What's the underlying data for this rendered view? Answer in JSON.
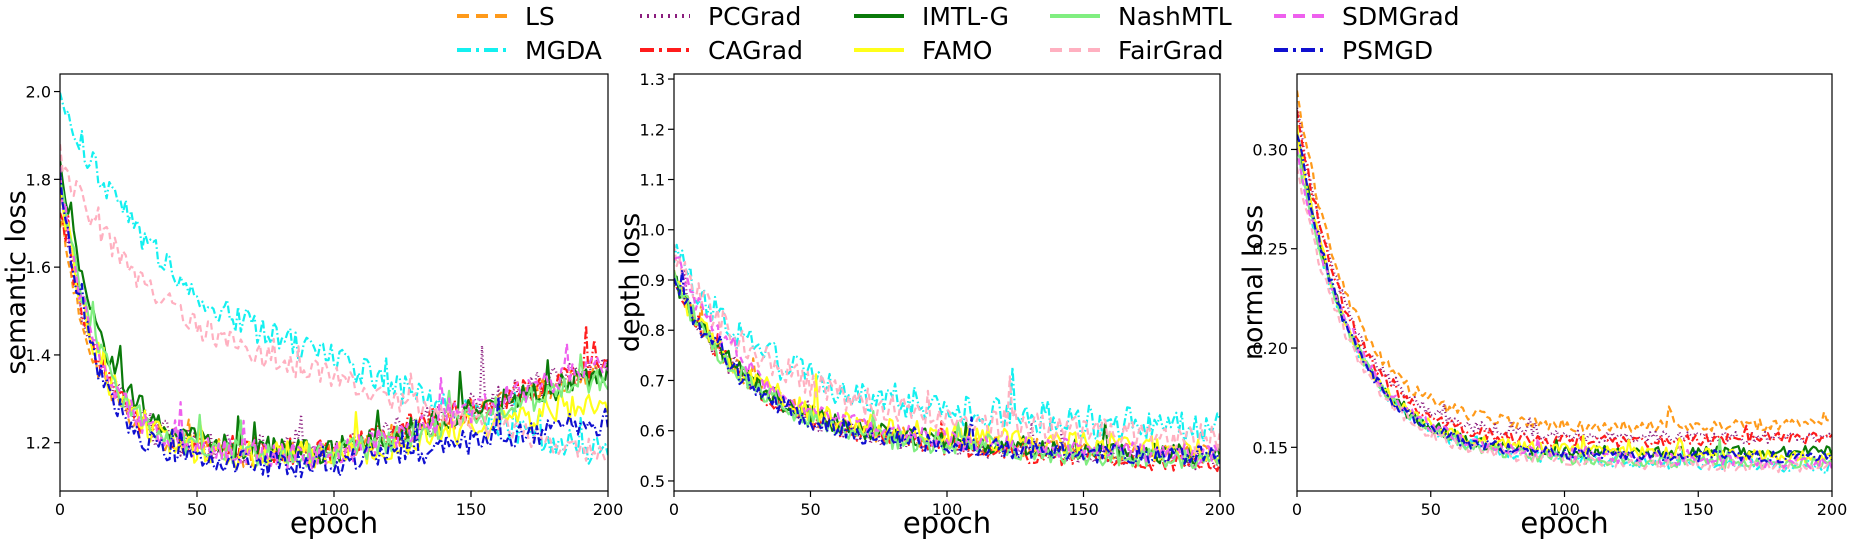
{
  "chart_data": [
    {
      "type": "line",
      "xlabel": "epoch",
      "ylabel": "semantic loss",
      "xlim": [
        0,
        200
      ],
      "ylim": [
        1.09,
        2.04
      ],
      "xticks": [
        "0",
        "50",
        "100",
        "150",
        "200"
      ],
      "yticks": [
        "1.2",
        "1.4",
        "1.6",
        "1.8",
        "2.0"
      ],
      "ytick_values": [
        1.2,
        1.4,
        1.6,
        1.8,
        2.0
      ],
      "series_profile": [
        {
          "name": "LS",
          "start": 1.72,
          "plateau": 1.17,
          "tau": 14,
          "end": 1.37,
          "noise": 0.03
        },
        {
          "name": "MGDA",
          "start": 1.98,
          "plateau": 1.31,
          "tau": 48,
          "end": 1.16,
          "noise": 0.035
        },
        {
          "name": "PCGrad",
          "start": 1.75,
          "plateau": 1.18,
          "tau": 14,
          "end": 1.38,
          "noise": 0.035
        },
        {
          "name": "CAGrad",
          "start": 1.75,
          "plateau": 1.18,
          "tau": 14,
          "end": 1.38,
          "noise": 0.03
        },
        {
          "name": "IMTL-G",
          "start": 1.85,
          "plateau": 1.18,
          "tau": 16,
          "end": 1.36,
          "noise": 0.03
        },
        {
          "name": "FAMO",
          "start": 1.8,
          "plateau": 1.17,
          "tau": 14,
          "end": 1.3,
          "noise": 0.035
        },
        {
          "name": "NashMTL",
          "start": 1.8,
          "plateau": 1.17,
          "tau": 15,
          "end": 1.35,
          "noise": 0.03
        },
        {
          "name": "FairGrad",
          "start": 1.85,
          "plateau": 1.3,
          "tau": 42,
          "end": 1.17,
          "noise": 0.03
        },
        {
          "name": "SDMGrad",
          "start": 1.8,
          "plateau": 1.17,
          "tau": 14,
          "end": 1.38,
          "noise": 0.03
        },
        {
          "name": "PSMGD",
          "start": 1.8,
          "plateau": 1.15,
          "tau": 13,
          "end": 1.25,
          "noise": 0.03
        }
      ]
    },
    {
      "type": "line",
      "xlabel": "epoch",
      "ylabel": "depth loss",
      "xlim": [
        0,
        200
      ],
      "ylim": [
        0.48,
        1.31
      ],
      "xticks": [
        "0",
        "50",
        "100",
        "150",
        "200"
      ],
      "yticks": [
        "0.5",
        "0.6",
        "0.7",
        "0.8",
        "0.9",
        "1.0",
        "1.1",
        "1.2",
        "1.3"
      ],
      "ytick_values": [
        0.5,
        0.6,
        0.7,
        0.8,
        0.9,
        1.0,
        1.1,
        1.2,
        1.3
      ],
      "series_profile": [
        {
          "name": "LS",
          "start": 0.9,
          "plateau": 0.57,
          "tau": 30,
          "end": 0.55,
          "noise": 0.02
        },
        {
          "name": "MGDA",
          "start": 0.95,
          "plateau": 0.63,
          "tau": 35,
          "end": 0.6,
          "noise": 0.035
        },
        {
          "name": "PCGrad",
          "start": 0.9,
          "plateau": 0.56,
          "tau": 30,
          "end": 0.54,
          "noise": 0.02
        },
        {
          "name": "CAGrad",
          "start": 0.9,
          "plateau": 0.56,
          "tau": 30,
          "end": 0.53,
          "noise": 0.02
        },
        {
          "name": "IMTL-G",
          "start": 0.9,
          "plateau": 0.57,
          "tau": 30,
          "end": 0.55,
          "noise": 0.02
        },
        {
          "name": "FAMO",
          "start": 0.9,
          "plateau": 0.58,
          "tau": 30,
          "end": 0.56,
          "noise": 0.025
        },
        {
          "name": "NashMTL",
          "start": 0.9,
          "plateau": 0.56,
          "tau": 30,
          "end": 0.54,
          "noise": 0.02
        },
        {
          "name": "FairGrad",
          "start": 0.95,
          "plateau": 0.61,
          "tau": 35,
          "end": 0.58,
          "noise": 0.03
        },
        {
          "name": "SDMGrad",
          "start": 0.95,
          "plateau": 0.57,
          "tau": 30,
          "end": 0.55,
          "noise": 0.02
        },
        {
          "name": "PSMGD",
          "start": 0.9,
          "plateau": 0.56,
          "tau": 30,
          "end": 0.55,
          "noise": 0.02
        }
      ]
    },
    {
      "type": "line",
      "xlabel": "epoch",
      "ylabel": "normal loss",
      "xlim": [
        0,
        200
      ],
      "ylim": [
        0.128,
        0.338
      ],
      "xticks": [
        "0",
        "50",
        "100",
        "150",
        "200"
      ],
      "yticks": [
        "0.15",
        "0.20",
        "0.25",
        "0.30"
      ],
      "ytick_values": [
        0.15,
        0.2,
        0.25,
        0.3
      ],
      "series_profile": [
        {
          "name": "LS",
          "start": 0.33,
          "plateau": 0.16,
          "tau": 20,
          "end": 0.162,
          "noise": 0.003
        },
        {
          "name": "MGDA",
          "start": 0.3,
          "plateau": 0.143,
          "tau": 22,
          "end": 0.14,
          "noise": 0.003
        },
        {
          "name": "PCGrad",
          "start": 0.32,
          "plateau": 0.155,
          "tau": 20,
          "end": 0.155,
          "noise": 0.003
        },
        {
          "name": "CAGrad",
          "start": 0.32,
          "plateau": 0.152,
          "tau": 20,
          "end": 0.155,
          "noise": 0.003
        },
        {
          "name": "IMTL-G",
          "start": 0.31,
          "plateau": 0.147,
          "tau": 20,
          "end": 0.148,
          "noise": 0.003
        },
        {
          "name": "FAMO",
          "start": 0.31,
          "plateau": 0.148,
          "tau": 20,
          "end": 0.145,
          "noise": 0.003
        },
        {
          "name": "NashMTL",
          "start": 0.3,
          "plateau": 0.143,
          "tau": 22,
          "end": 0.142,
          "noise": 0.003
        },
        {
          "name": "FairGrad",
          "start": 0.29,
          "plateau": 0.142,
          "tau": 22,
          "end": 0.14,
          "noise": 0.003
        },
        {
          "name": "SDMGrad",
          "start": 0.3,
          "plateau": 0.145,
          "tau": 22,
          "end": 0.142,
          "noise": 0.003
        },
        {
          "name": "PSMGD",
          "start": 0.31,
          "plateau": 0.146,
          "tau": 20,
          "end": 0.145,
          "noise": 0.003
        }
      ]
    }
  ],
  "legend": {
    "placement": "top-center",
    "entries": [
      {
        "name": "LS",
        "color": "#ff9a1a",
        "dash": "12,7"
      },
      {
        "name": "MGDA",
        "color": "#14f0f0",
        "dash": "14,5,3,5"
      },
      {
        "name": "PCGrad",
        "color": "#8b1e7e",
        "dash": "2,5"
      },
      {
        "name": "CAGrad",
        "color": "#ff1c1c",
        "dash": "14,5,3,5"
      },
      {
        "name": "IMTL-G",
        "color": "#0a7a0a",
        "dash": ""
      },
      {
        "name": "FAMO",
        "color": "#ffff1a",
        "dash": ""
      },
      {
        "name": "NashMTL",
        "color": "#80ee80",
        "dash": ""
      },
      {
        "name": "FairGrad",
        "color": "#ffb0c0",
        "dash": "12,7"
      },
      {
        "name": "SDMGrad",
        "color": "#ee60ee",
        "dash": "12,7"
      },
      {
        "name": "PSMGD",
        "color": "#1010d0",
        "dash": "14,5,3,5"
      }
    ]
  }
}
